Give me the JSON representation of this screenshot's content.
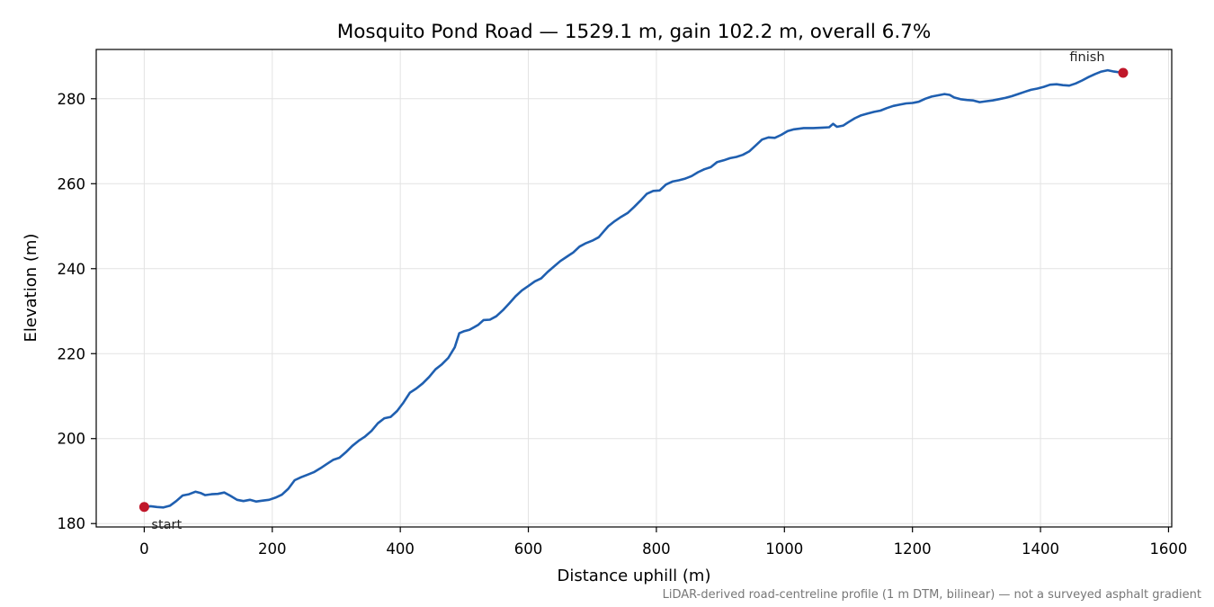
{
  "chart_data": {
    "type": "line",
    "title": "Mosquito Pond Road — 1529.1 m, gain 102.2 m, overall 6.7%",
    "xlabel": "Distance uphill (m)",
    "ylabel": "Elevation (m)",
    "xlim": [
      -75,
      1605
    ],
    "ylim": [
      179.2,
      291.6
    ],
    "xticks": [
      0,
      200,
      400,
      600,
      800,
      1000,
      1200,
      1400,
      1600
    ],
    "yticks": [
      180,
      200,
      220,
      240,
      260,
      280
    ],
    "grid": true,
    "footnote": "LiDAR-derived road-centreline profile (1 m DTM, bilinear) — not a surveyed asphalt gradient",
    "annotations": [
      {
        "text": "start",
        "x": 0,
        "y": 183.9
      },
      {
        "text": "finish",
        "x": 1529.1,
        "y": 286.1
      }
    ],
    "series": [
      {
        "points": [
          [
            0,
            183.9
          ],
          [
            10,
            184.1
          ],
          [
            20,
            183.9
          ],
          [
            30,
            183.8
          ],
          [
            40,
            184.2
          ],
          [
            50,
            185.3
          ],
          [
            60,
            186.6
          ],
          [
            70,
            186.9
          ],
          [
            80,
            187.5
          ],
          [
            88,
            187.2
          ],
          [
            95,
            186.7
          ],
          [
            105,
            186.9
          ],
          [
            115,
            187.0
          ],
          [
            125,
            187.3
          ],
          [
            135,
            186.5
          ],
          [
            145,
            185.6
          ],
          [
            155,
            185.3
          ],
          [
            165,
            185.6
          ],
          [
            175,
            185.2
          ],
          [
            185,
            185.4
          ],
          [
            195,
            185.6
          ],
          [
            205,
            186.1
          ],
          [
            215,
            186.8
          ],
          [
            225,
            188.2
          ],
          [
            235,
            190.2
          ],
          [
            245,
            190.9
          ],
          [
            255,
            191.5
          ],
          [
            265,
            192.1
          ],
          [
            275,
            193.0
          ],
          [
            285,
            194.0
          ],
          [
            295,
            195.0
          ],
          [
            305,
            195.5
          ],
          [
            315,
            196.8
          ],
          [
            325,
            198.3
          ],
          [
            335,
            199.5
          ],
          [
            345,
            200.5
          ],
          [
            355,
            201.8
          ],
          [
            365,
            203.6
          ],
          [
            375,
            204.8
          ],
          [
            385,
            205.1
          ],
          [
            395,
            206.5
          ],
          [
            405,
            208.5
          ],
          [
            415,
            210.8
          ],
          [
            425,
            211.8
          ],
          [
            435,
            213.0
          ],
          [
            445,
            214.5
          ],
          [
            455,
            216.3
          ],
          [
            465,
            217.5
          ],
          [
            475,
            219.0
          ],
          [
            485,
            221.5
          ],
          [
            492,
            224.8
          ],
          [
            500,
            225.3
          ],
          [
            508,
            225.6
          ],
          [
            515,
            226.2
          ],
          [
            522,
            226.8
          ],
          [
            530,
            227.9
          ],
          [
            540,
            228.0
          ],
          [
            550,
            228.8
          ],
          [
            560,
            230.2
          ],
          [
            570,
            231.8
          ],
          [
            580,
            233.5
          ],
          [
            590,
            234.9
          ],
          [
            600,
            235.9
          ],
          [
            610,
            237.0
          ],
          [
            620,
            237.7
          ],
          [
            630,
            239.2
          ],
          [
            640,
            240.5
          ],
          [
            650,
            241.8
          ],
          [
            660,
            242.8
          ],
          [
            670,
            243.8
          ],
          [
            680,
            245.2
          ],
          [
            690,
            246.0
          ],
          [
            700,
            246.6
          ],
          [
            710,
            247.4
          ],
          [
            718,
            248.8
          ],
          [
            725,
            250.0
          ],
          [
            735,
            251.2
          ],
          [
            745,
            252.2
          ],
          [
            755,
            253.1
          ],
          [
            765,
            254.5
          ],
          [
            775,
            256.0
          ],
          [
            785,
            257.6
          ],
          [
            795,
            258.3
          ],
          [
            805,
            258.4
          ],
          [
            815,
            259.8
          ],
          [
            825,
            260.5
          ],
          [
            835,
            260.8
          ],
          [
            845,
            261.2
          ],
          [
            855,
            261.8
          ],
          [
            865,
            262.7
          ],
          [
            875,
            263.4
          ],
          [
            885,
            263.9
          ],
          [
            895,
            265.1
          ],
          [
            905,
            265.5
          ],
          [
            915,
            266.0
          ],
          [
            925,
            266.3
          ],
          [
            935,
            266.8
          ],
          [
            945,
            267.6
          ],
          [
            955,
            269.0
          ],
          [
            965,
            270.4
          ],
          [
            975,
            270.9
          ],
          [
            985,
            270.8
          ],
          [
            995,
            271.5
          ],
          [
            1005,
            272.4
          ],
          [
            1015,
            272.8
          ],
          [
            1030,
            273.1
          ],
          [
            1045,
            273.1
          ],
          [
            1060,
            273.2
          ],
          [
            1070,
            273.3
          ],
          [
            1076,
            274.1
          ],
          [
            1082,
            273.4
          ],
          [
            1092,
            273.7
          ],
          [
            1100,
            274.5
          ],
          [
            1110,
            275.4
          ],
          [
            1120,
            276.1
          ],
          [
            1130,
            276.5
          ],
          [
            1140,
            276.9
          ],
          [
            1150,
            277.2
          ],
          [
            1160,
            277.8
          ],
          [
            1170,
            278.3
          ],
          [
            1180,
            278.6
          ],
          [
            1190,
            278.9
          ],
          [
            1200,
            279.0
          ],
          [
            1210,
            279.3
          ],
          [
            1220,
            280.0
          ],
          [
            1230,
            280.5
          ],
          [
            1240,
            280.8
          ],
          [
            1250,
            281.1
          ],
          [
            1258,
            280.9
          ],
          [
            1265,
            280.3
          ],
          [
            1275,
            279.9
          ],
          [
            1285,
            279.7
          ],
          [
            1295,
            279.6
          ],
          [
            1305,
            279.2
          ],
          [
            1315,
            279.4
          ],
          [
            1325,
            279.6
          ],
          [
            1335,
            279.9
          ],
          [
            1345,
            280.2
          ],
          [
            1355,
            280.6
          ],
          [
            1365,
            281.1
          ],
          [
            1375,
            281.6
          ],
          [
            1385,
            282.1
          ],
          [
            1395,
            282.4
          ],
          [
            1405,
            282.8
          ],
          [
            1415,
            283.3
          ],
          [
            1425,
            283.4
          ],
          [
            1435,
            283.2
          ],
          [
            1445,
            283.1
          ],
          [
            1455,
            283.6
          ],
          [
            1465,
            284.3
          ],
          [
            1475,
            285.1
          ],
          [
            1485,
            285.8
          ],
          [
            1495,
            286.4
          ],
          [
            1505,
            286.7
          ],
          [
            1515,
            286.4
          ],
          [
            1529.1,
            286.1
          ]
        ]
      }
    ]
  }
}
